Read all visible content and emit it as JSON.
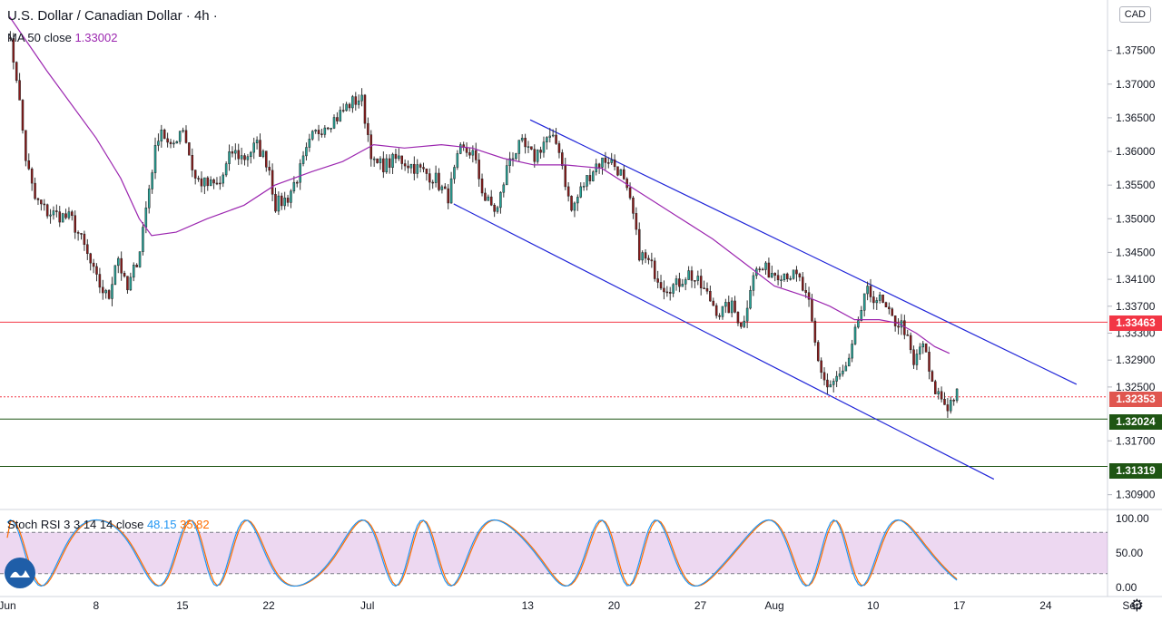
{
  "header": {
    "symbol": "U.S. Dollar / Canadian Dollar",
    "separator": "·",
    "interval": "4h",
    "interval_dot": "·",
    "ma_label": "MA 50 close",
    "ma_value": "1.33002",
    "currency": "CAD"
  },
  "oscillator": {
    "label": "Stoch RSI 3 3 14 14 close",
    "k_value": "48.15",
    "d_value": "35.82",
    "k_color": "#2196f3",
    "d_color": "#ff6d00",
    "band_upper": 80,
    "band_lower": 20,
    "ticks": [
      "100.00",
      "50.00",
      "0.00"
    ]
  },
  "icons": {
    "logo": "tradingview-logo-icon",
    "settings": "gear-icon"
  },
  "chart_data": {
    "type": "candlestick",
    "instrument": "USDCAD",
    "timeframe": "4h",
    "ylim": [
      1.3068,
      1.3825
    ],
    "y_ticks": [
      "1.37500",
      "1.37000",
      "1.36500",
      "1.36000",
      "1.35500",
      "1.35000",
      "1.34500",
      "1.34100",
      "1.33700",
      "1.33300",
      "1.32900",
      "1.32500",
      "1.31700",
      "1.30900"
    ],
    "x_ticks": [
      {
        "label": "Jun",
        "day": 0.8
      },
      {
        "label": "8",
        "day": 8
      },
      {
        "label": "15",
        "day": 15
      },
      {
        "label": "22",
        "day": 22
      },
      {
        "label": "Jul",
        "day": 30
      },
      {
        "label": "13",
        "day": 43
      },
      {
        "label": "20",
        "day": 50
      },
      {
        "label": "27",
        "day": 57
      },
      {
        "label": "Aug",
        "day": 63
      },
      {
        "label": "10",
        "day": 71
      },
      {
        "label": "17",
        "day": 78
      },
      {
        "label": "24",
        "day": 85
      },
      {
        "label": "Sep",
        "day": 92
      }
    ],
    "price_path": [
      [
        0.8,
        1.378
      ],
      [
        1.5,
        1.372
      ],
      [
        2.3,
        1.359
      ],
      [
        3.0,
        1.353
      ],
      [
        4.0,
        1.351
      ],
      [
        5.0,
        1.3505
      ],
      [
        6.0,
        1.35
      ],
      [
        7.0,
        1.346
      ],
      [
        8.0,
        1.341
      ],
      [
        9.0,
        1.338
      ],
      [
        9.7,
        1.345
      ],
      [
        10.5,
        1.339
      ],
      [
        11.5,
        1.345
      ],
      [
        12.5,
        1.357
      ],
      [
        13.2,
        1.364
      ],
      [
        14.0,
        1.36
      ],
      [
        15.0,
        1.364
      ],
      [
        16.0,
        1.356
      ],
      [
        17.0,
        1.355
      ],
      [
        18.0,
        1.355
      ],
      [
        19.0,
        1.36
      ],
      [
        20.0,
        1.359
      ],
      [
        21.0,
        1.361
      ],
      [
        22.0,
        1.358
      ],
      [
        22.5,
        1.352
      ],
      [
        23.5,
        1.353
      ],
      [
        24.5,
        1.357
      ],
      [
        25.5,
        1.362
      ],
      [
        26.5,
        1.364
      ],
      [
        27.5,
        1.365
      ],
      [
        28.5,
        1.367
      ],
      [
        29.5,
        1.368
      ],
      [
        30.5,
        1.358
      ],
      [
        31.5,
        1.358
      ],
      [
        32.5,
        1.359
      ],
      [
        33.5,
        1.358
      ],
      [
        34.5,
        1.357
      ],
      [
        35.5,
        1.356
      ],
      [
        36.5,
        1.353
      ],
      [
        37.5,
        1.36
      ],
      [
        38.5,
        1.36
      ],
      [
        39.5,
        1.353
      ],
      [
        40.5,
        1.351
      ],
      [
        41.5,
        1.359
      ],
      [
        42.5,
        1.361
      ],
      [
        43.5,
        1.359
      ],
      [
        44.5,
        1.362
      ],
      [
        45.5,
        1.361
      ],
      [
        46.5,
        1.351
      ],
      [
        47.5,
        1.355
      ],
      [
        48.5,
        1.358
      ],
      [
        49.5,
        1.359
      ],
      [
        50.5,
        1.357
      ],
      [
        51.5,
        1.351
      ],
      [
        52.0,
        1.345
      ],
      [
        53.0,
        1.343
      ],
      [
        54.0,
        1.34
      ],
      [
        55.0,
        1.34
      ],
      [
        56.0,
        1.342
      ],
      [
        57.0,
        1.34
      ],
      [
        57.8,
        1.338
      ],
      [
        58.5,
        1.336
      ],
      [
        59.5,
        1.337
      ],
      [
        60.5,
        1.334
      ],
      [
        61.2,
        1.342
      ],
      [
        62.0,
        1.3425
      ],
      [
        63.0,
        1.342
      ],
      [
        64.0,
        1.342
      ],
      [
        65.0,
        1.341
      ],
      [
        65.8,
        1.337
      ],
      [
        66.5,
        1.329
      ],
      [
        67.3,
        1.325
      ],
      [
        68.0,
        1.326
      ],
      [
        69.0,
        1.328
      ],
      [
        69.8,
        1.335
      ],
      [
        70.5,
        1.339
      ],
      [
        71.5,
        1.338
      ],
      [
        72.5,
        1.335
      ],
      [
        73.5,
        1.334
      ],
      [
        74.3,
        1.328
      ],
      [
        75.0,
        1.332
      ],
      [
        75.8,
        1.325
      ],
      [
        76.5,
        1.3235
      ],
      [
        77.0,
        1.322
      ],
      [
        77.7,
        1.324
      ],
      [
        78.0,
        1.3235
      ]
    ],
    "ma50_path": [
      [
        1.0,
        1.38
      ],
      [
        4.0,
        1.372
      ],
      [
        8.0,
        1.362
      ],
      [
        10.0,
        1.356
      ],
      [
        11.5,
        1.35
      ],
      [
        12.5,
        1.3475
      ],
      [
        14.5,
        1.348
      ],
      [
        17.0,
        1.35
      ],
      [
        20.0,
        1.352
      ],
      [
        22.5,
        1.355
      ],
      [
        25.5,
        1.357
      ],
      [
        28.0,
        1.3585
      ],
      [
        30.5,
        1.361
      ],
      [
        33.0,
        1.3605
      ],
      [
        36.0,
        1.361
      ],
      [
        38.5,
        1.3605
      ],
      [
        41.0,
        1.359
      ],
      [
        43.5,
        1.358
      ],
      [
        46.0,
        1.358
      ],
      [
        49.0,
        1.3575
      ],
      [
        52.0,
        1.354
      ],
      [
        55.0,
        1.3505
      ],
      [
        58.0,
        1.347
      ],
      [
        60.5,
        1.3435
      ],
      [
        63.0,
        1.34
      ],
      [
        65.5,
        1.3385
      ],
      [
        67.5,
        1.337
      ],
      [
        69.5,
        1.335
      ],
      [
        71.5,
        1.335
      ],
      [
        73.0,
        1.3345
      ],
      [
        74.5,
        1.333
      ],
      [
        76.0,
        1.331
      ],
      [
        77.2,
        1.33
      ]
    ],
    "channel_upper": [
      [
        43.2,
        1.3647
      ],
      [
        87.5,
        1.3254
      ]
    ],
    "channel_lower": [
      [
        37.0,
        1.3522
      ],
      [
        80.8,
        1.3113
      ]
    ],
    "hlines": [
      {
        "price": 1.33463,
        "label": "1.33463",
        "color": "#f23645",
        "style": "solid"
      },
      {
        "price": 1.32353,
        "label": "1.32353",
        "color": "#f23645",
        "style": "dotted"
      },
      {
        "price": 1.32024,
        "label": "1.32024",
        "color": "#1f5514",
        "style": "solid"
      },
      {
        "price": 1.31319,
        "label": "1.31319",
        "color": "#1f5514",
        "style": "solid"
      }
    ],
    "up_color": "#26a69a",
    "down_color": "#8b1a1a",
    "ma_color": "#9c27b0",
    "channel_color": "#1f24d8"
  }
}
